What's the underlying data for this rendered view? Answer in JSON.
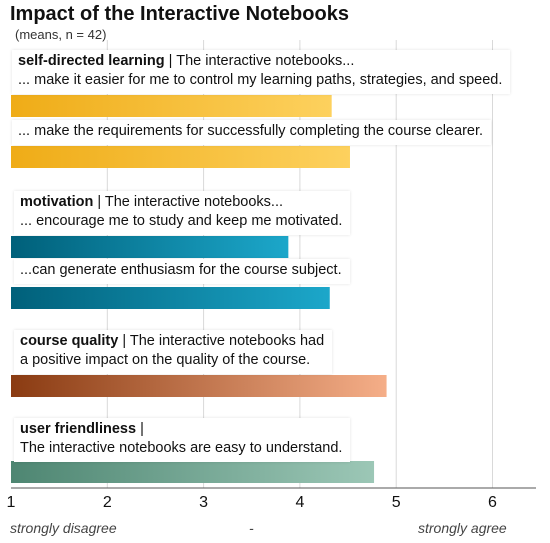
{
  "chart_data": {
    "type": "bar",
    "orientation": "horizontal",
    "title": "Impact of the Interactive Notebooks",
    "subtitle": "(means, n = 42)",
    "xlim": [
      1,
      6.5
    ],
    "xticks": [
      "1",
      "2",
      "3",
      "4",
      "5",
      "6"
    ],
    "grid": true,
    "scale_labels": {
      "low": "strongly disagree",
      "mid": "-",
      "high": "strongly agree"
    },
    "groups": [
      {
        "name": "self-directed learning",
        "intro": " | The interactive notebooks...",
        "color_start": "#EFAC17",
        "color_end": "#FDD15E",
        "items": [
          {
            "label": "... make it easier for me to control my learning paths, strategies, and speed.",
            "value": 4.33
          },
          {
            "label": "... make the requirements for successfully completing the course clearer.",
            "value": 4.52
          }
        ]
      },
      {
        "name": "motivation",
        "intro": " | The interactive notebooks...",
        "color_start": "#00607A",
        "color_end": "#1CA7CA",
        "items": [
          {
            "label": "... encourage me to study and keep me motivated.",
            "value": 3.88
          },
          {
            "label": "...can generate enthusiasm for the course subject.",
            "value": 4.31
          }
        ]
      },
      {
        "name": "course quality",
        "intro": " | The interactive notebooks had",
        "color_start": "#8A3B12",
        "color_end": "#F5AE88",
        "items": [
          {
            "label": "a positive impact on the quality of the course.",
            "value": 4.9
          }
        ]
      },
      {
        "name": "user friendliness",
        "intro": " |",
        "color_start": "#4E8672",
        "color_end": "#9CC7B6",
        "items": [
          {
            "label": "The interactive notebooks are easy to understand.",
            "value": 4.77
          }
        ]
      }
    ]
  }
}
